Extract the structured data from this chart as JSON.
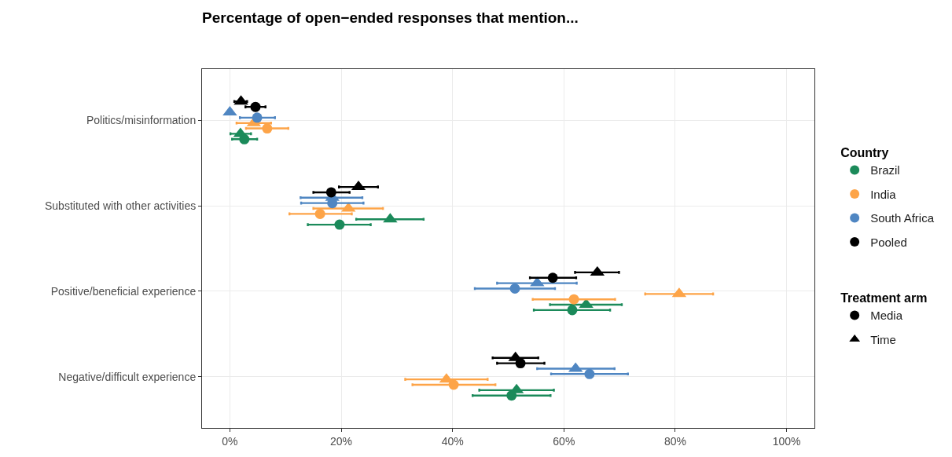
{
  "chart_data": {
    "type": "scatter",
    "orientation": "horizontal",
    "title": "Percentage of open−ended responses that mention...",
    "categories": [
      "Politics/misinformation",
      "Substituted with other activities",
      "Positive/beneficial experience",
      "Negative/difficult experience"
    ],
    "xlim": [
      -5,
      105
    ],
    "xticks": [
      {
        "value": 0,
        "label": "0%"
      },
      {
        "value": 20,
        "label": "20%"
      },
      {
        "value": 40,
        "label": "40%"
      },
      {
        "value": 60,
        "label": "60%"
      },
      {
        "value": 80,
        "label": "80%"
      },
      {
        "value": 100,
        "label": "100%"
      }
    ],
    "grid": true,
    "legend": "right",
    "legend_title": [
      "Country",
      "Treatment arm"
    ],
    "series": [
      {
        "name": "Brazil",
        "color": "#1b8a5a",
        "marker": "circle",
        "values": [
          2.6,
          19.7,
          61.5,
          50.6
        ],
        "errors": [
          [
            0.4,
            4.9
          ],
          [
            14.0,
            25.3
          ],
          [
            54.6,
            68.3
          ],
          [
            43.6,
            57.6
          ]
        ]
      },
      {
        "color": "#1b8a5a",
        "marker": "triangle",
        "values": [
          1.9,
          28.8,
          64.0,
          51.5
        ],
        "errors": [
          [
            0.1,
            3.8
          ],
          [
            22.7,
            34.8
          ],
          [
            57.5,
            70.4
          ],
          [
            44.8,
            58.2
          ]
        ]
      },
      {
        "name": "India",
        "color": "#fda448",
        "marker": "circle",
        "values": [
          6.7,
          16.2,
          61.8,
          40.2
        ],
        "errors": [
          [
            2.9,
            10.5
          ],
          [
            10.7,
            21.9
          ],
          [
            54.4,
            69.2
          ],
          [
            32.8,
            47.7
          ]
        ]
      },
      {
        "color": "#fda448",
        "marker": "triangle",
        "values": [
          4.3,
          21.3,
          80.7,
          38.9
        ],
        "errors": [
          [
            1.2,
            7.4
          ],
          [
            15.0,
            27.5
          ],
          [
            74.6,
            86.8
          ],
          [
            31.5,
            46.3
          ]
        ]
      },
      {
        "name": "South Africa",
        "color": "#4f86c2",
        "marker": "circle",
        "values": [
          4.9,
          18.4,
          51.2,
          64.6
        ],
        "errors": [
          [
            1.8,
            8.1
          ],
          [
            12.8,
            24.0
          ],
          [
            44.0,
            58.4
          ],
          [
            57.7,
            71.5
          ]
        ]
      },
      {
        "color": "#4f86c2",
        "marker": "triangle",
        "values": [
          0.0,
          18.4,
          55.2,
          62.1
        ],
        "errors": [
          null,
          [
            12.7,
            23.8
          ],
          [
            48.0,
            62.3
          ],
          [
            55.2,
            69.1
          ]
        ]
      },
      {
        "name": "Pooled",
        "color": "#000000",
        "marker": "circle",
        "values": [
          4.6,
          18.2,
          58.0,
          52.2
        ],
        "errors": [
          [
            2.8,
            6.4
          ],
          [
            15.0,
            21.5
          ],
          [
            53.9,
            62.2
          ],
          [
            48.0,
            56.5
          ]
        ]
      },
      {
        "color": "#000000",
        "marker": "triangle",
        "values": [
          2.0,
          23.1,
          66.0,
          51.3
        ],
        "errors": [
          [
            0.8,
            3.1
          ],
          [
            19.6,
            26.6
          ],
          [
            62.0,
            69.9
          ],
          [
            47.2,
            55.4
          ]
        ]
      },
      {
        "name": "Media",
        "color": "#000000",
        "marker": "circle",
        "values": [
          null,
          null,
          null,
          null
        ]
      },
      {
        "name": "Time",
        "color": "#000000",
        "marker": "triangle",
        "values": [
          null,
          null,
          null,
          null
        ]
      }
    ]
  }
}
